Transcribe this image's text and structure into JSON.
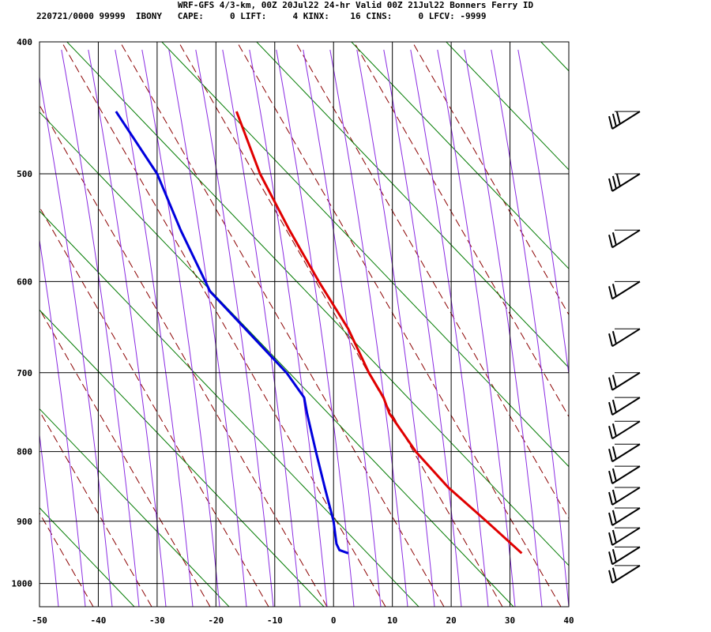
{
  "header": {
    "title": "WRF-GFS 4/3-km, 00Z 20Jul22 24-hr Valid 00Z 21Jul22 Bonners Ferry ID",
    "indices": "220721/0000 99999  IBONY   CAPE:     0 LIFT:     4 KINX:    16 CINS:     0 LFCV: -9999"
  },
  "chart_data": {
    "type": "line",
    "title": "WRF-GFS 4/3-km, 00Z 20Jul22 24-hr Valid 00Z 21Jul22 Bonners Ferry ID",
    "x_ticks": [
      "-50",
      "-40",
      "-30",
      "-20",
      "-10",
      "0",
      "10",
      "20",
      "30",
      "40"
    ],
    "y_ticks": [
      "400",
      "500",
      "600",
      "700",
      "800",
      "900",
      "1000"
    ],
    "xlim": [
      -50,
      40
    ],
    "ylim": [
      1040,
      400
    ],
    "y_scale": "log",
    "grid": true,
    "colors": {
      "temperature": "#e00000",
      "dewpoint": "#0000dd",
      "dry_adiabat": "#8b0000",
      "moist_adiabat": "#8a2be2",
      "isotherm_skew": "#007a00",
      "grid": "#000000"
    },
    "series": [
      {
        "role": "temperature",
        "points": [
          {
            "p": 950,
            "t": 32
          },
          {
            "p": 900,
            "t": 26
          },
          {
            "p": 850,
            "t": 19.5
          },
          {
            "p": 800,
            "t": 14
          },
          {
            "p": 750,
            "t": 9.5
          },
          {
            "p": 730,
            "t": 8.5
          },
          {
            "p": 700,
            "t": 6
          },
          {
            "p": 650,
            "t": 2.5
          },
          {
            "p": 600,
            "t": -2.5
          },
          {
            "p": 550,
            "t": -7.5
          },
          {
            "p": 500,
            "t": -12.5
          },
          {
            "p": 450,
            "t": -16.5
          }
        ]
      },
      {
        "role": "dewpoint",
        "points": [
          {
            "p": 950,
            "t": 2.5
          },
          {
            "p": 945,
            "t": 1
          },
          {
            "p": 935,
            "t": 0.5
          },
          {
            "p": 900,
            "t": 0
          },
          {
            "p": 850,
            "t": -1.5
          },
          {
            "p": 800,
            "t": -3
          },
          {
            "p": 750,
            "t": -4.5
          },
          {
            "p": 730,
            "t": -5
          },
          {
            "p": 700,
            "t": -8
          },
          {
            "p": 650,
            "t": -15
          },
          {
            "p": 610,
            "t": -21
          },
          {
            "p": 550,
            "t": -26
          },
          {
            "p": 500,
            "t": -30
          },
          {
            "p": 450,
            "t": -37
          }
        ]
      }
    ],
    "wind_barbs": [
      {
        "p": 450,
        "barbs": 3
      },
      {
        "p": 500,
        "barbs": 3
      },
      {
        "p": 550,
        "barbs": 2
      },
      {
        "p": 600,
        "barbs": 2
      },
      {
        "p": 650,
        "barbs": 2
      },
      {
        "p": 700,
        "barbs": 2
      },
      {
        "p": 730,
        "barbs": 2
      },
      {
        "p": 760,
        "barbs": 2
      },
      {
        "p": 790,
        "barbs": 2
      },
      {
        "p": 820,
        "barbs": 2
      },
      {
        "p": 850,
        "barbs": 2
      },
      {
        "p": 880,
        "barbs": 2
      },
      {
        "p": 910,
        "barbs": 2
      },
      {
        "p": 940,
        "barbs": 2
      },
      {
        "p": 970,
        "barbs": 2
      }
    ]
  }
}
